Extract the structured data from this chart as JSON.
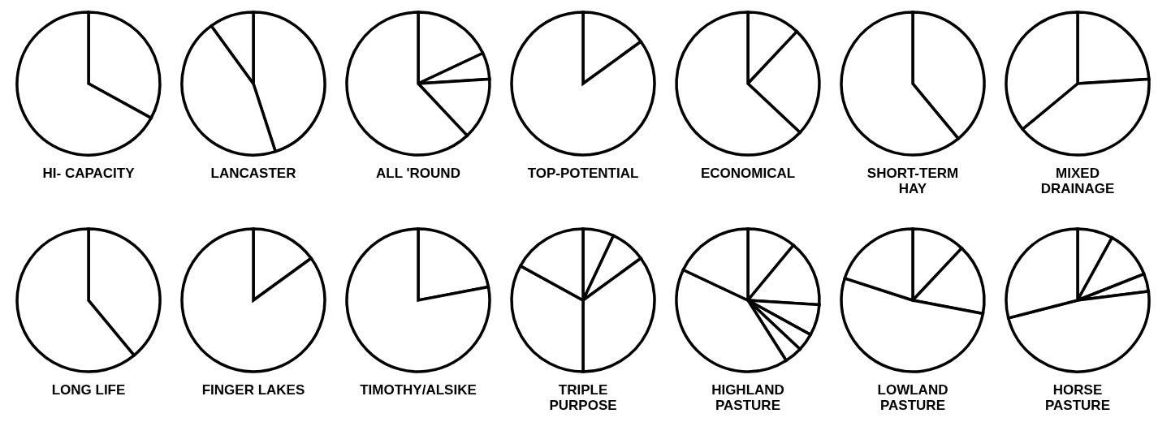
{
  "chart_data": [
    {
      "type": "pie",
      "title": "HI- CAPACITY",
      "categories": [
        null,
        null
      ],
      "values": [
        33,
        67
      ],
      "colors": [
        "#ffffff",
        "#ffffff"
      ]
    },
    {
      "type": "pie",
      "title": "LANCASTER",
      "categories": [
        null,
        null,
        null
      ],
      "values": [
        45,
        45,
        10
      ],
      "colors": [
        "#ffffff",
        "#ffffff",
        "#ffffff"
      ]
    },
    {
      "type": "pie",
      "title": "ALL 'ROUND",
      "categories": [
        null,
        null,
        null,
        null
      ],
      "values": [
        18,
        6,
        14,
        62
      ],
      "colors": [
        "#ffffff",
        "#ffffff",
        "#ffffff",
        "#ffffff"
      ]
    },
    {
      "type": "pie",
      "title": "TOP-POTENTIAL",
      "categories": [
        null,
        null
      ],
      "values": [
        15,
        85
      ],
      "colors": [
        "#ffffff",
        "#ffffff"
      ]
    },
    {
      "type": "pie",
      "title": "ECONOMICAL",
      "categories": [
        null,
        null,
        null
      ],
      "values": [
        12,
        25,
        63
      ],
      "colors": [
        "#ffffff",
        "#ffffff",
        "#ffffff"
      ]
    },
    {
      "type": "pie",
      "title": "SHORT-TERM\nHAY",
      "categories": [
        null,
        null
      ],
      "values": [
        39,
        61
      ],
      "colors": [
        "#ffffff",
        "#ffffff"
      ]
    },
    {
      "type": "pie",
      "title": "MIXED\nDRAINAGE",
      "categories": [
        null,
        null,
        null
      ],
      "values": [
        24,
        40,
        36
      ],
      "colors": [
        "#ffffff",
        "#ffffff",
        "#ffffff"
      ]
    },
    {
      "type": "pie",
      "title": "LONG LIFE",
      "categories": [
        null,
        null
      ],
      "values": [
        39,
        61
      ],
      "colors": [
        "#ffffff",
        "#ffffff"
      ]
    },
    {
      "type": "pie",
      "title": "FINGER LAKES",
      "categories": [
        null,
        null
      ],
      "values": [
        15,
        85
      ],
      "colors": [
        "#ffffff",
        "#ffffff"
      ]
    },
    {
      "type": "pie",
      "title": "TIMOTHY/ALSIKE",
      "categories": [
        null,
        null
      ],
      "values": [
        22,
        78
      ],
      "colors": [
        "#ffffff",
        "#ffffff"
      ]
    },
    {
      "type": "pie",
      "title": "TRIPLE\nPURPOSE",
      "categories": [
        null,
        null,
        null,
        null,
        null
      ],
      "values": [
        7,
        8,
        35,
        33,
        17
      ],
      "colors": [
        "#ffffff",
        "#ffffff",
        "#ffffff",
        "#ffffff",
        "#ffffff"
      ]
    },
    {
      "type": "pie",
      "title": "HIGHLAND\nPASTURE",
      "categories": [
        null,
        null,
        null,
        null,
        null,
        null,
        null
      ],
      "values": [
        11,
        15,
        7,
        4,
        4,
        41,
        18
      ],
      "colors": [
        "#ffffff",
        "#ffffff",
        "#ffffff",
        "#ffffff",
        "#ffffff",
        "#ffffff",
        "#ffffff"
      ]
    },
    {
      "type": "pie",
      "title": "LOWLAND\nPASTURE",
      "categories": [
        null,
        null,
        null,
        null
      ],
      "values": [
        12,
        16,
        52,
        20
      ],
      "colors": [
        "#ffffff",
        "#ffffff",
        "#ffffff",
        "#ffffff"
      ]
    },
    {
      "type": "pie",
      "title": "HORSE\nPASTURE",
      "categories": [
        null,
        null,
        null,
        null,
        null
      ],
      "values": [
        8,
        11,
        4,
        48,
        29
      ],
      "colors": [
        "#ffffff",
        "#ffffff",
        "#ffffff",
        "#ffffff",
        "#ffffff"
      ]
    }
  ]
}
